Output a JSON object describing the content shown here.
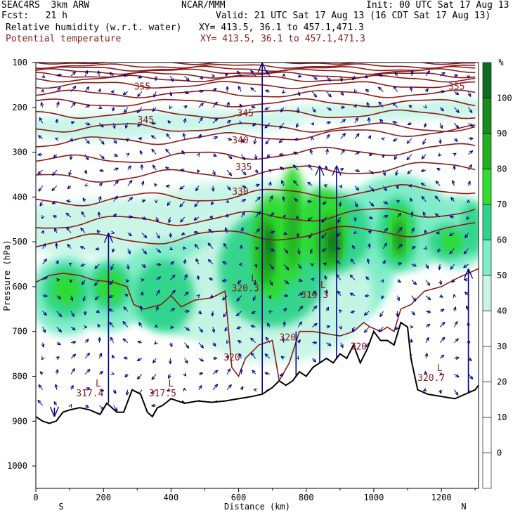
{
  "header": {
    "model": "SEAC4RS  3km ARW",
    "org": "NCAR/MMM",
    "init": "Init: 00 UTC Sat 17 Aug 13",
    "fcst": "Fcst:   21 h",
    "valid": "Valid: 21 UTC Sat 17 Aug 13 (16 CDT Sat 17 Aug 13)",
    "field1": "Relative humidity (w.r.t. water)",
    "xy1": "XY= 413.5, 36.1 to 457.1,471.3",
    "field2": "Potential temperature",
    "xy2": "XY= 413.5, 36.1 to 457.1,471.3"
  },
  "colors": {
    "theta": "#8b1a1a",
    "wind": "#00008b",
    "terrain": "#000000",
    "rh": [
      "#ffffff",
      "#ffffff",
      "#ffffff",
      "#ffffff",
      "#ffffff",
      "#c8f5e6",
      "#7eecc8",
      "#2fd48a",
      "#2fdc2f",
      "#22b022",
      "#1a8a1a",
      "#0f6b22"
    ]
  },
  "chart_data": {
    "type": "heatmap",
    "xlabel": "Distance (km)",
    "ylabel": "Pressure (hPa)",
    "x_ticks": [
      0,
      200,
      400,
      600,
      800,
      1000,
      1200
    ],
    "y_ticks": [
      100,
      200,
      300,
      400,
      500,
      600,
      700,
      800,
      900,
      1000
    ],
    "xlim": [
      0,
      1310
    ],
    "ylim": [
      100,
      1050
    ],
    "x_end_labels": {
      "left": "S",
      "right": "N"
    },
    "colorbar": {
      "unit": "%",
      "levels": [
        0,
        10,
        20,
        30,
        40,
        50,
        60,
        70,
        80,
        90,
        100
      ]
    },
    "theta_labels": [
      {
        "text": "355",
        "x": 315,
        "p": 160
      },
      {
        "text": "355",
        "x": 1245,
        "p": 160
      },
      {
        "text": "345",
        "x": 325,
        "p": 235
      },
      {
        "text": "345",
        "x": 620,
        "p": 220
      },
      {
        "text": "340",
        "x": 605,
        "p": 280
      },
      {
        "text": "335",
        "x": 615,
        "p": 340
      },
      {
        "text": "330",
        "x": 605,
        "p": 395
      },
      {
        "text": "320",
        "x": 580,
        "p": 765
      },
      {
        "text": "320",
        "x": 745,
        "p": 720
      },
      {
        "text": "320",
        "x": 955,
        "p": 740
      }
    ],
    "extrema": [
      {
        "kind": "L",
        "value": "317.4",
        "x": 160,
        "p": 845
      },
      {
        "kind": "L",
        "value": "317.5",
        "x": 375,
        "p": 845
      },
      {
        "kind": "L",
        "value": "320.3",
        "x": 620,
        "p": 610
      },
      {
        "kind": "L",
        "value": "319.3",
        "x": 825,
        "p": 625
      },
      {
        "kind": "L",
        "value": "320.7",
        "x": 1170,
        "p": 810
      }
    ],
    "terrain": [
      [
        0,
        890
      ],
      [
        20,
        900
      ],
      [
        40,
        905
      ],
      [
        60,
        900
      ],
      [
        80,
        880
      ],
      [
        100,
        875
      ],
      [
        130,
        870
      ],
      [
        160,
        875
      ],
      [
        190,
        885
      ],
      [
        210,
        860
      ],
      [
        240,
        880
      ],
      [
        260,
        880
      ],
      [
        285,
        830
      ],
      [
        310,
        840
      ],
      [
        330,
        880
      ],
      [
        345,
        890
      ],
      [
        360,
        870
      ],
      [
        375,
        865
      ],
      [
        400,
        850
      ],
      [
        440,
        860
      ],
      [
        480,
        855
      ],
      [
        520,
        858
      ],
      [
        560,
        855
      ],
      [
        600,
        850
      ],
      [
        640,
        845
      ],
      [
        670,
        840
      ],
      [
        700,
        825
      ],
      [
        720,
        810
      ],
      [
        740,
        820
      ],
      [
        760,
        810
      ],
      [
        780,
        790
      ],
      [
        800,
        800
      ],
      [
        820,
        780
      ],
      [
        840,
        770
      ],
      [
        860,
        760
      ],
      [
        880,
        770
      ],
      [
        900,
        750
      ],
      [
        920,
        760
      ],
      [
        940,
        730
      ],
      [
        960,
        770
      ],
      [
        980,
        740
      ],
      [
        1000,
        700
      ],
      [
        1020,
        720
      ],
      [
        1040,
        720
      ],
      [
        1060,
        730
      ],
      [
        1080,
        680
      ],
      [
        1100,
        690
      ],
      [
        1110,
        760
      ],
      [
        1130,
        830
      ],
      [
        1160,
        840
      ],
      [
        1200,
        845
      ],
      [
        1240,
        850
      ],
      [
        1270,
        840
      ],
      [
        1300,
        830
      ],
      [
        1310,
        820
      ]
    ]
  }
}
